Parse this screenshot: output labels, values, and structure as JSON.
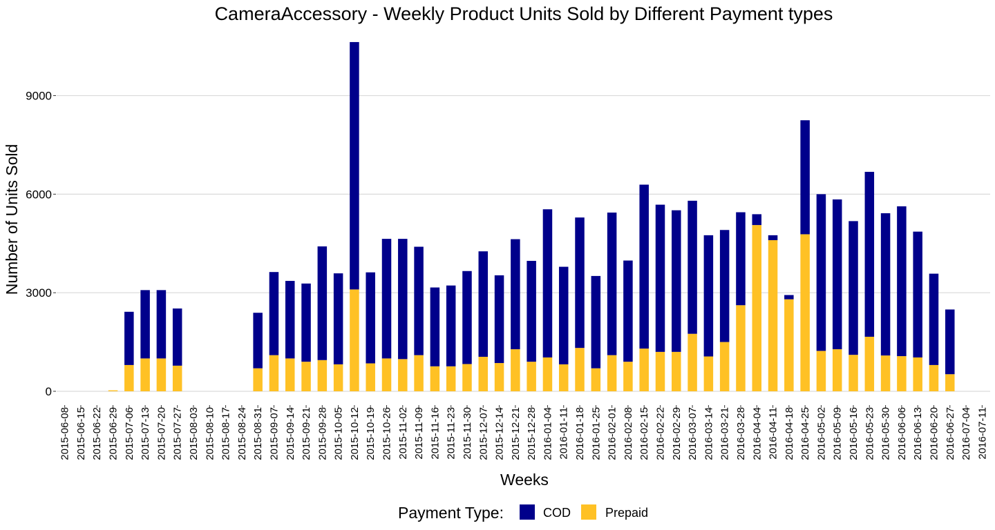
{
  "chart_data": {
    "type": "bar",
    "stacked": true,
    "title": "CameraAccessory - Weekly Product Units Sold by Different Payment types",
    "xlabel": "Weeks",
    "ylabel": "Number of Units Sold",
    "ylim": [
      0,
      10650
    ],
    "yticks": [
      0,
      3000,
      6000,
      9000
    ],
    "ytick_labels": [
      "0",
      "3000",
      "6000",
      "9000"
    ],
    "grid": "horizontal",
    "legend": {
      "title": "Payment Type:",
      "position": "bottom",
      "entries": [
        {
          "label": "COD",
          "color": "#00008B"
        },
        {
          "label": "Prepaid",
          "color": "#FFC125"
        }
      ]
    },
    "categories": [
      "2015-06-08",
      "2015-06-15",
      "2015-06-22",
      "2015-06-29",
      "2015-07-06",
      "2015-07-13",
      "2015-07-20",
      "2015-07-27",
      "2015-08-03",
      "2015-08-10",
      "2015-08-17",
      "2015-08-24",
      "2015-08-31",
      "2015-09-07",
      "2015-09-14",
      "2015-09-21",
      "2015-09-28",
      "2015-10-05",
      "2015-10-12",
      "2015-10-19",
      "2015-10-26",
      "2015-11-02",
      "2015-11-09",
      "2015-11-16",
      "2015-11-23",
      "2015-11-30",
      "2015-12-07",
      "2015-12-14",
      "2015-12-21",
      "2015-12-28",
      "2016-01-04",
      "2016-01-11",
      "2016-01-18",
      "2016-01-25",
      "2016-02-01",
      "2016-02-08",
      "2016-02-15",
      "2016-02-22",
      "2016-02-29",
      "2016-03-07",
      "2016-03-14",
      "2016-03-21",
      "2016-03-28",
      "2016-04-04",
      "2016-04-11",
      "2016-04-18",
      "2016-04-25",
      "2016-05-02",
      "2016-05-09",
      "2016-05-16",
      "2016-05-23",
      "2016-05-30",
      "2016-06-06",
      "2016-06-13",
      "2016-06-20",
      "2016-06-27",
      "2016-07-04",
      "2016-07-11"
    ],
    "series": [
      {
        "name": "Prepaid",
        "color": "#FFC125",
        "values": [
          0,
          0,
          0,
          30,
          800,
          1000,
          1000,
          780,
          0,
          0,
          0,
          0,
          700,
          1100,
          1000,
          900,
          950,
          820,
          3100,
          850,
          1000,
          980,
          1100,
          760,
          760,
          830,
          1050,
          860,
          1280,
          900,
          1030,
          820,
          1320,
          700,
          1100,
          900,
          1300,
          1200,
          1200,
          1750,
          1060,
          1500,
          2620,
          5060,
          4600,
          2800,
          4780,
          1230,
          1280,
          1110,
          1660,
          1090,
          1070,
          1030,
          800,
          520,
          0,
          0
        ]
      },
      {
        "name": "COD",
        "color": "#00008B",
        "values": [
          0,
          0,
          0,
          0,
          1620,
          2080,
          2080,
          1740,
          0,
          0,
          0,
          0,
          1690,
          2530,
          2360,
          2380,
          3460,
          2770,
          7530,
          2770,
          3640,
          3660,
          3300,
          2400,
          2460,
          2830,
          3210,
          2670,
          3350,
          3070,
          4510,
          2970,
          3970,
          2810,
          4340,
          3080,
          4990,
          4480,
          4310,
          4050,
          3690,
          3410,
          2830,
          330,
          150,
          130,
          3470,
          4770,
          4560,
          4070,
          5020,
          4330,
          4560,
          3830,
          2780,
          1970,
          0,
          0
        ]
      }
    ]
  }
}
